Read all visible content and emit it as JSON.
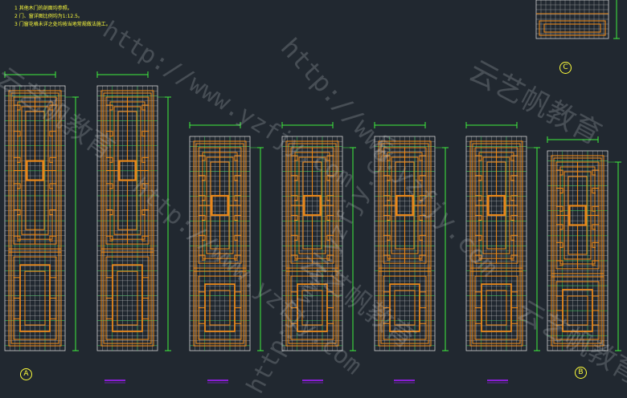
{
  "notes": [
    "1    其他木门的剖面均参照。",
    "2    门、窗详图比例均为1:12.5。",
    "3    门窗花格未详之处均按当地常规做法施工。"
  ],
  "markers": {
    "a": "A",
    "b": "B",
    "c": "C"
  },
  "watermarks": {
    "url": "http://www.yzfjy.com",
    "brand": "云艺帆教育"
  },
  "colors": {
    "background": "#212830",
    "grid": "#d4d4d4",
    "lattice": "#e8871a",
    "accent": "#2cc44c",
    "dimension": "#3ef03e",
    "label": "#ffff3c",
    "section": "#8a1ed6"
  }
}
